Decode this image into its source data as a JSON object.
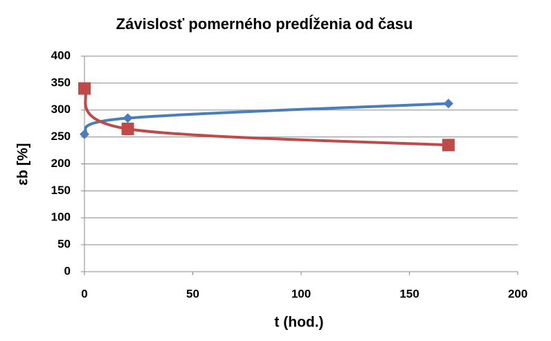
{
  "chart_data": {
    "type": "scatter",
    "title": "Závislosť pomerného predĺženia od času",
    "x_label": "t (hod.)",
    "y_label": "εb [%]",
    "series": [
      {
        "color": "#4a7ebb",
        "marker": "diamond",
        "x": [
          0,
          20,
          168
        ],
        "values": [
          255,
          285,
          312
        ]
      },
      {
        "color": "#be4b48",
        "marker": "square",
        "x": [
          0,
          20,
          168
        ],
        "values": [
          340,
          265,
          235
        ]
      }
    ],
    "xlim": [
      0,
      200
    ],
    "xticks": [
      0,
      50,
      100,
      150,
      200
    ],
    "ylim": [
      0,
      400
    ],
    "yticks": [
      0,
      50,
      100,
      150,
      200,
      250,
      300,
      350,
      400
    ],
    "grid": true,
    "smooth": true
  }
}
